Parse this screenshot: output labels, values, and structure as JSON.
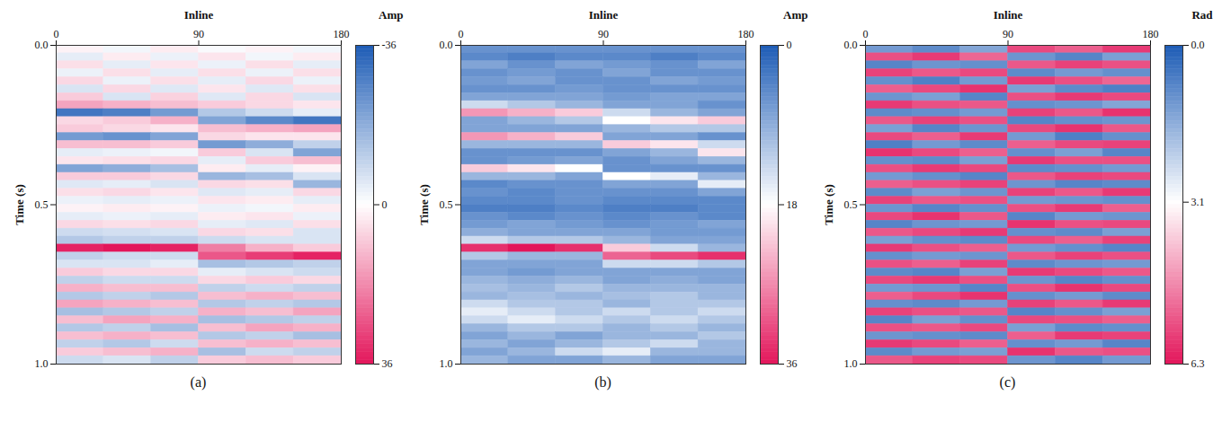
{
  "chart_data": [
    {
      "type": "heatmap",
      "panel_label": "(a)",
      "x_label": "Inline",
      "y_label": "Time (s)",
      "xlim": [
        0,
        180
      ],
      "xticks": [
        0,
        90,
        180
      ],
      "ylim": [
        0,
        1
      ],
      "yticks": [
        {
          "value": 0,
          "label": "0.0"
        },
        {
          "value": 0.5,
          "label": "0.5"
        },
        {
          "value": 1,
          "label": "1.0"
        }
      ],
      "x": [
        0,
        30,
        60,
        90,
        120,
        150,
        180
      ],
      "y": [
        0,
        0.025,
        0.05,
        0.075,
        0.1,
        0.125,
        0.15,
        0.175,
        0.2,
        0.225,
        0.25,
        0.275,
        0.3,
        0.325,
        0.35,
        0.375,
        0.4,
        0.425,
        0.45,
        0.475,
        0.5,
        0.525,
        0.55,
        0.575,
        0.6,
        0.625,
        0.65,
        0.675,
        0.7,
        0.725,
        0.75,
        0.775,
        0.8,
        0.825,
        0.85,
        0.875,
        0.9,
        0.925,
        0.95,
        0.975,
        1
      ],
      "values": [
        [
          2,
          -2,
          3,
          -1,
          2,
          -2
        ],
        [
          -4,
          3,
          -3,
          4,
          -2,
          3
        ],
        [
          5,
          -4,
          4,
          -3,
          5,
          -4
        ],
        [
          -3,
          5,
          -4,
          5,
          -3,
          5
        ],
        [
          6,
          -3,
          5,
          -4,
          6,
          -3
        ],
        [
          -6,
          6,
          -5,
          4,
          -5,
          5
        ],
        [
          8,
          -6,
          7,
          -5,
          6,
          -6
        ],
        [
          14,
          12,
          10,
          8,
          6,
          4
        ],
        [
          -30,
          -28,
          -22,
          -12,
          -8,
          -4
        ],
        [
          6,
          8,
          12,
          -20,
          -26,
          -30
        ],
        [
          8,
          6,
          4,
          10,
          12,
          14
        ],
        [
          -22,
          -24,
          -20,
          6,
          4,
          4
        ],
        [
          10,
          10,
          8,
          -22,
          -18,
          -10
        ],
        [
          -4,
          -3,
          -2,
          8,
          -6,
          -20
        ],
        [
          4,
          5,
          6,
          -4,
          8,
          10
        ],
        [
          -20,
          -18,
          -14,
          3,
          -4,
          2
        ],
        [
          8,
          8,
          6,
          -16,
          -14,
          -6
        ],
        [
          -5,
          -4,
          -6,
          6,
          5,
          -16
        ],
        [
          5,
          6,
          4,
          -5,
          -4,
          6
        ],
        [
          -3,
          -4,
          -3,
          4,
          3,
          -4
        ],
        [
          2,
          3,
          2,
          -3,
          -2,
          3
        ],
        [
          -4,
          -3,
          -4,
          3,
          4,
          -3
        ],
        [
          6,
          5,
          6,
          -4,
          -5,
          5
        ],
        [
          -8,
          -7,
          -6,
          6,
          5,
          -6
        ],
        [
          -12,
          -10,
          -10,
          -8,
          -6,
          -6
        ],
        [
          34,
          36,
          34,
          20,
          12,
          8
        ],
        [
          -10,
          -8,
          -8,
          26,
          30,
          34
        ],
        [
          -6,
          -6,
          -4,
          -14,
          -12,
          -10
        ],
        [
          8,
          6,
          6,
          -4,
          -6,
          -8
        ],
        [
          -10,
          -8,
          -8,
          6,
          8,
          6
        ],
        [
          12,
          10,
          10,
          -10,
          -8,
          -10
        ],
        [
          -12,
          -10,
          -12,
          10,
          12,
          10
        ],
        [
          14,
          12,
          10,
          -12,
          -10,
          -12
        ],
        [
          -14,
          -12,
          -10,
          12,
          10,
          14
        ],
        [
          10,
          14,
          12,
          -14,
          -12,
          -10
        ],
        [
          -12,
          -10,
          -14,
          10,
          14,
          12
        ],
        [
          10,
          12,
          10,
          -12,
          -10,
          -14
        ],
        [
          -10,
          -12,
          -8,
          10,
          12,
          10
        ],
        [
          8,
          10,
          12,
          -14,
          -8,
          -10
        ],
        [
          -8,
          -6,
          -10,
          8,
          10,
          8
        ]
      ],
      "colorbar": {
        "label": "Amp",
        "range": [
          -36,
          36
        ],
        "ticks": [
          -36,
          0,
          36
        ],
        "colors": [
          "#1c5bb5",
          "#ffffff",
          "#e3165b"
        ]
      }
    },
    {
      "type": "heatmap",
      "panel_label": "(b)",
      "x_label": "Inline",
      "y_label": "Time (s)",
      "xlim": [
        0,
        180
      ],
      "xticks": [
        0,
        90,
        180
      ],
      "ylim": [
        0,
        1
      ],
      "yticks": [
        {
          "value": 0,
          "label": "0.0"
        },
        {
          "value": 0.5,
          "label": "0.5"
        },
        {
          "value": 1,
          "label": "1.0"
        }
      ],
      "x": [
        0,
        30,
        60,
        90,
        120,
        150,
        180
      ],
      "y": [
        0,
        0.025,
        0.05,
        0.075,
        0.1,
        0.125,
        0.15,
        0.175,
        0.2,
        0.225,
        0.25,
        0.275,
        0.3,
        0.325,
        0.35,
        0.375,
        0.4,
        0.425,
        0.45,
        0.475,
        0.5,
        0.525,
        0.55,
        0.575,
        0.6,
        0.625,
        0.65,
        0.675,
        0.7,
        0.725,
        0.75,
        0.775,
        0.8,
        0.825,
        0.85,
        0.875,
        0.9,
        0.925,
        0.95,
        0.975,
        1
      ],
      "values": [
        [
          6,
          6,
          6,
          6,
          6,
          6
        ],
        [
          5,
          4,
          5,
          5,
          4,
          5
        ],
        [
          8,
          6,
          8,
          7,
          6,
          8
        ],
        [
          6,
          7,
          6,
          8,
          6,
          6
        ],
        [
          7,
          8,
          6,
          6,
          8,
          7
        ],
        [
          6,
          6,
          7,
          6,
          6,
          6
        ],
        [
          8,
          8,
          8,
          7,
          8,
          8
        ],
        [
          14,
          12,
          10,
          8,
          8,
          6
        ],
        [
          26,
          24,
          22,
          14,
          10,
          8
        ],
        [
          8,
          10,
          12,
          18,
          20,
          22
        ],
        [
          8,
          8,
          8,
          10,
          12,
          12
        ],
        [
          26,
          24,
          22,
          8,
          8,
          6
        ],
        [
          10,
          10,
          10,
          22,
          20,
          14
        ],
        [
          6,
          6,
          6,
          8,
          10,
          20
        ],
        [
          6,
          7,
          8,
          6,
          8,
          10
        ],
        [
          22,
          20,
          18,
          6,
          6,
          6
        ],
        [
          10,
          10,
          8,
          18,
          16,
          10
        ],
        [
          5,
          6,
          6,
          8,
          8,
          16
        ],
        [
          6,
          5,
          6,
          6,
          6,
          8
        ],
        [
          5,
          5,
          6,
          5,
          5,
          5
        ],
        [
          4,
          4,
          5,
          4,
          4,
          5
        ],
        [
          6,
          5,
          6,
          5,
          6,
          5
        ],
        [
          7,
          8,
          7,
          6,
          7,
          8
        ],
        [
          9,
          8,
          8,
          8,
          7,
          7
        ],
        [
          14,
          12,
          12,
          10,
          8,
          8
        ],
        [
          34,
          36,
          34,
          22,
          14,
          10
        ],
        [
          12,
          10,
          10,
          30,
          32,
          34
        ],
        [
          8,
          8,
          8,
          14,
          14,
          12
        ],
        [
          8,
          7,
          8,
          8,
          8,
          8
        ],
        [
          10,
          9,
          10,
          8,
          9,
          8
        ],
        [
          11,
          10,
          12,
          10,
          10,
          10
        ],
        [
          10,
          11,
          10,
          11,
          12,
          10
        ],
        [
          14,
          12,
          12,
          10,
          12,
          12
        ],
        [
          16,
          14,
          12,
          14,
          12,
          14
        ],
        [
          14,
          16,
          14,
          12,
          14,
          12
        ],
        [
          10,
          12,
          12,
          10,
          12,
          10
        ],
        [
          8,
          10,
          8,
          10,
          10,
          12
        ],
        [
          10,
          8,
          10,
          12,
          14,
          10
        ],
        [
          8,
          10,
          14,
          16,
          10,
          10
        ],
        [
          10,
          8,
          8,
          10,
          8,
          8
        ]
      ],
      "colorbar": {
        "label": "Amp",
        "range": [
          0,
          36
        ],
        "ticks": [
          0,
          18,
          36
        ],
        "colors": [
          "#1c5bb5",
          "#ffffff",
          "#e3165b"
        ]
      }
    },
    {
      "type": "heatmap",
      "panel_label": "(c)",
      "x_label": "Inline",
      "y_label": "Time (s)",
      "xlim": [
        0,
        180
      ],
      "xticks": [
        0,
        90,
        180
      ],
      "ylim": [
        0,
        1
      ],
      "yticks": [
        {
          "value": 0,
          "label": "0.0"
        },
        {
          "value": 0.5,
          "label": "0.5"
        },
        {
          "value": 1,
          "label": "1.0"
        }
      ],
      "x": [
        0,
        30,
        60,
        90,
        120,
        150,
        180
      ],
      "y": [
        0,
        0.025,
        0.05,
        0.075,
        0.1,
        0.125,
        0.15,
        0.175,
        0.2,
        0.225,
        0.25,
        0.275,
        0.3,
        0.325,
        0.35,
        0.375,
        0.4,
        0.425,
        0.45,
        0.475,
        0.5,
        0.525,
        0.55,
        0.575,
        0.6,
        0.625,
        0.65,
        0.675,
        0.7,
        0.725,
        0.75,
        0.775,
        0.8,
        0.825,
        0.85,
        0.875,
        0.9,
        0.925,
        0.95,
        0.975,
        1
      ],
      "values": [
        [
          1.2,
          0.9,
          1.4,
          5.6,
          5.3,
          5.8
        ],
        [
          5.5,
          5.8,
          5.2,
          1.1,
          0.8,
          1.3
        ],
        [
          0.8,
          1.1,
          1.0,
          5.4,
          5.7,
          5.5
        ],
        [
          5.7,
          5.4,
          5.6,
          0.9,
          1.2,
          1.0
        ],
        [
          1.0,
          0.7,
          1.2,
          5.8,
          5.5,
          5.2
        ],
        [
          5.3,
          5.6,
          5.9,
          1.3,
          0.9,
          0.7
        ],
        [
          1.1,
          1.3,
          0.8,
          5.5,
          5.8,
          5.6
        ],
        [
          5.8,
          5.5,
          5.4,
          1.0,
          1.1,
          1.4
        ],
        [
          0.9,
          1.0,
          1.2,
          5.7,
          5.4,
          5.9
        ],
        [
          5.4,
          5.7,
          5.5,
          0.8,
          1.0,
          1.1
        ],
        [
          1.3,
          0.8,
          1.1,
          5.6,
          5.9,
          5.4
        ],
        [
          5.6,
          5.3,
          5.8,
          1.2,
          0.7,
          1.0
        ],
        [
          0.7,
          1.2,
          0.9,
          5.3,
          5.6,
          5.7
        ],
        [
          5.9,
          5.6,
          5.3,
          1.0,
          1.3,
          0.8
        ],
        [
          1.0,
          0.9,
          1.3,
          5.8,
          5.5,
          5.5
        ],
        [
          5.5,
          5.8,
          5.6,
          0.9,
          1.0,
          1.2
        ],
        [
          1.2,
          1.0,
          0.8,
          5.4,
          5.7,
          5.6
        ],
        [
          5.3,
          5.5,
          5.7,
          1.1,
          0.8,
          0.9
        ],
        [
          0.9,
          1.3,
          1.1,
          5.7,
          5.4,
          5.8
        ],
        [
          5.7,
          5.4,
          5.5,
          1.2,
          1.1,
          1.0
        ],
        [
          1.1,
          0.8,
          1.0,
          5.5,
          5.8,
          5.3
        ],
        [
          5.6,
          5.9,
          5.4,
          0.8,
          1.2,
          1.1
        ],
        [
          0.8,
          1.1,
          1.2,
          5.9,
          5.5,
          5.6
        ],
        [
          5.4,
          5.6,
          5.8,
          1.0,
          0.9,
          1.3
        ],
        [
          1.3,
          1.0,
          0.9,
          5.6,
          5.3,
          5.7
        ],
        [
          5.8,
          5.5,
          5.3,
          1.2,
          1.0,
          0.8
        ],
        [
          1.0,
          1.2,
          1.1,
          5.4,
          5.7,
          5.5
        ],
        [
          5.5,
          5.3,
          5.7,
          0.9,
          1.1,
          1.2
        ],
        [
          0.9,
          0.8,
          1.3,
          5.8,
          5.6,
          5.4
        ],
        [
          5.6,
          5.8,
          5.5,
          1.1,
          0.8,
          1.0
        ],
        [
          1.2,
          1.1,
          0.8,
          5.5,
          5.9,
          5.6
        ],
        [
          5.3,
          5.6,
          5.9,
          1.0,
          1.2,
          0.9
        ],
        [
          1.0,
          0.9,
          1.2,
          5.7,
          5.4,
          5.8
        ],
        [
          5.7,
          5.5,
          5.4,
          0.8,
          1.0,
          1.3
        ],
        [
          0.8,
          1.3,
          1.0,
          5.6,
          5.5,
          5.3
        ],
        [
          5.5,
          5.4,
          5.6,
          1.3,
          0.9,
          1.0
        ],
        [
          1.1,
          1.0,
          0.9,
          5.3,
          5.8,
          5.7
        ],
        [
          5.8,
          5.6,
          5.3,
          1.0,
          1.2,
          0.8
        ],
        [
          0.9,
          1.2,
          1.3,
          5.9,
          5.4,
          5.5
        ],
        [
          5.4,
          5.7,
          5.6,
          1.1,
          0.8,
          1.2
        ]
      ],
      "colorbar": {
        "label": "Rad",
        "range": [
          0,
          6.3
        ],
        "ticks": [
          {
            "value": 0,
            "label": "0.0"
          },
          3.1,
          6.3
        ],
        "colors": [
          "#1c5bb5",
          "#ffffff",
          "#e3165b"
        ]
      }
    }
  ]
}
